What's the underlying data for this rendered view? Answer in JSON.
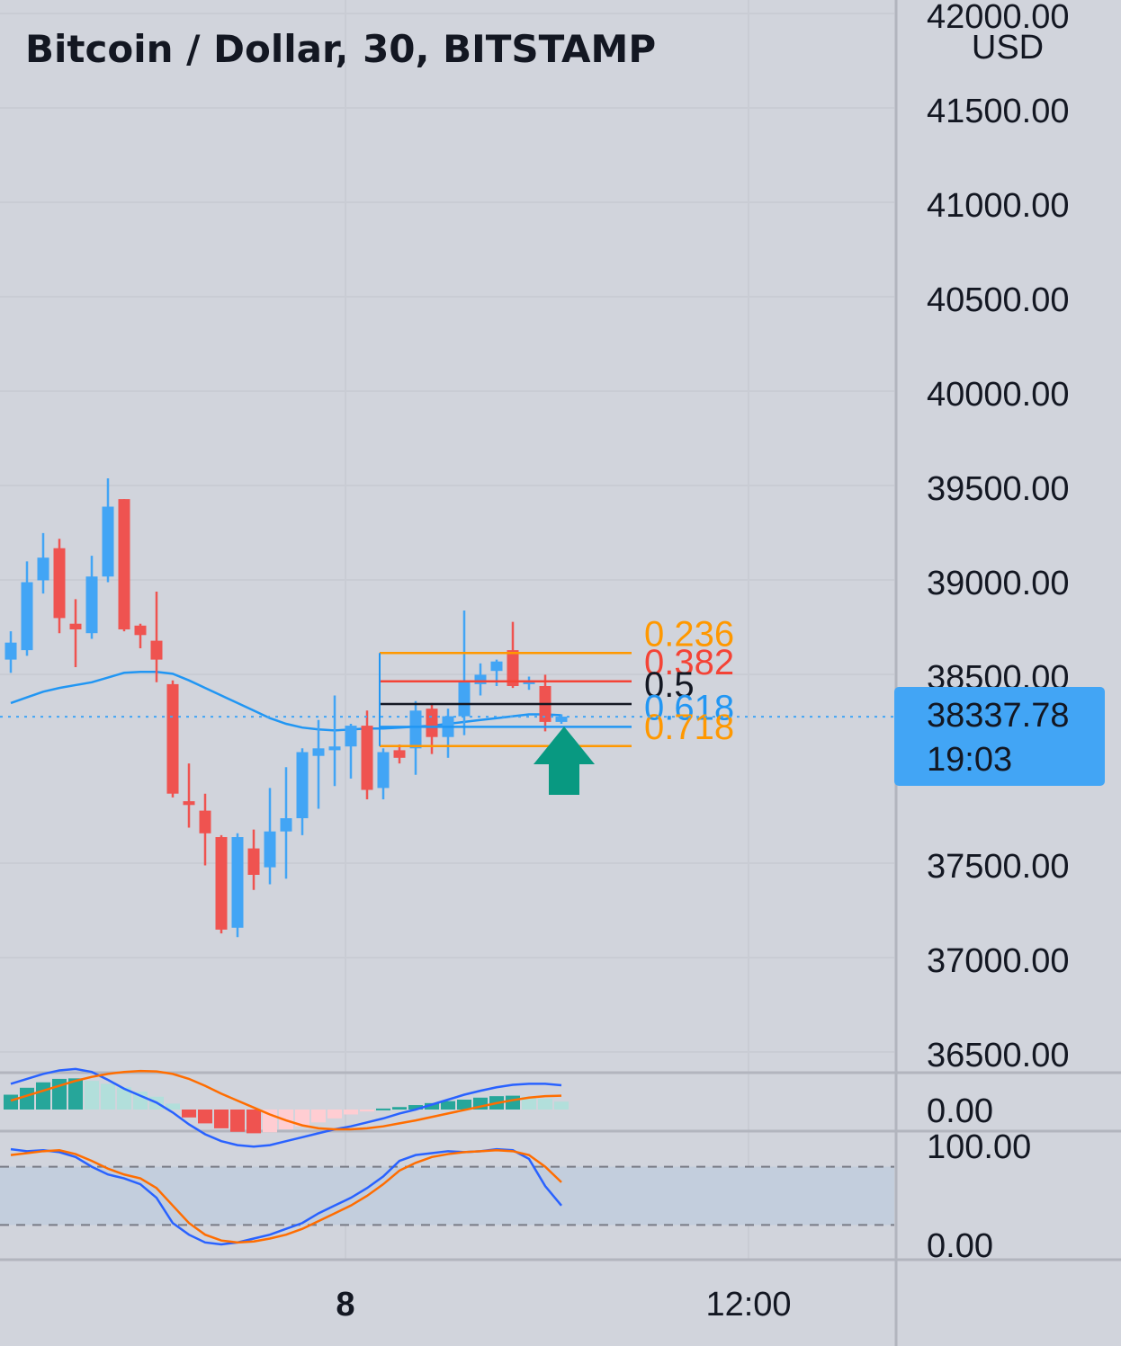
{
  "header": {
    "title": "Bitcoin / Dollar, 30, BITSTAMP",
    "currency": "USD"
  },
  "price_badge": {
    "price": "38337.78",
    "countdown": "19:03",
    "color": "#42a5f5"
  },
  "colors": {
    "background": "#d1d4dc",
    "up": "#42a5f5",
    "down": "#ef5350",
    "ma": "#2196f3",
    "arrow": "#089981",
    "macd_line": "#2962ff",
    "signal_line": "#ff6d00",
    "stoch_k": "#2962ff",
    "stoch_d": "#ff6d00",
    "stoch_band": "#c3cedd"
  },
  "chart_data": [
    {
      "type": "candlestick",
      "title": "Bitcoin / Dollar, 30, BITSTAMP",
      "ylabel": "USD",
      "ylim": [
        36500,
        42000
      ],
      "y_ticks": [
        "42000.00",
        "41500.00",
        "41000.00",
        "40500.00",
        "40000.00",
        "39500.00",
        "39000.00",
        "38500.00",
        "37500.00",
        "37000.00",
        "36500.00"
      ],
      "x_ticks": [
        "8",
        "12:00"
      ],
      "last_price": 38337.78,
      "candles": [
        {
          "o": 38640,
          "h": 38790,
          "l": 38570,
          "c": 38730
        },
        {
          "o": 38690,
          "h": 39160,
          "l": 38660,
          "c": 39050
        },
        {
          "o": 39060,
          "h": 39310,
          "l": 38990,
          "c": 39180
        },
        {
          "o": 39230,
          "h": 39280,
          "l": 38780,
          "c": 38860
        },
        {
          "o": 38830,
          "h": 38960,
          "l": 38600,
          "c": 38800
        },
        {
          "o": 38780,
          "h": 39190,
          "l": 38750,
          "c": 39080
        },
        {
          "o": 39080,
          "h": 39600,
          "l": 39050,
          "c": 39450
        },
        {
          "o": 39490,
          "h": 39490,
          "l": 38790,
          "c": 38800
        },
        {
          "o": 38820,
          "h": 38830,
          "l": 38700,
          "c": 38770
        },
        {
          "o": 38740,
          "h": 39000,
          "l": 38520,
          "c": 38640
        },
        {
          "o": 38510,
          "h": 38530,
          "l": 37910,
          "c": 37930
        },
        {
          "o": 37890,
          "h": 38090,
          "l": 37750,
          "c": 37870
        },
        {
          "o": 37840,
          "h": 37930,
          "l": 37550,
          "c": 37720
        },
        {
          "o": 37700,
          "h": 37710,
          "l": 37190,
          "c": 37210
        },
        {
          "o": 37220,
          "h": 37720,
          "l": 37170,
          "c": 37700
        },
        {
          "o": 37640,
          "h": 37740,
          "l": 37420,
          "c": 37500
        },
        {
          "o": 37540,
          "h": 37960,
          "l": 37450,
          "c": 37730
        },
        {
          "o": 37730,
          "h": 38070,
          "l": 37480,
          "c": 37800
        },
        {
          "o": 37800,
          "h": 38170,
          "l": 37710,
          "c": 38150
        },
        {
          "o": 38130,
          "h": 38320,
          "l": 37850,
          "c": 38170
        },
        {
          "o": 38160,
          "h": 38450,
          "l": 37970,
          "c": 38180
        },
        {
          "o": 38180,
          "h": 38300,
          "l": 38010,
          "c": 38290
        },
        {
          "o": 38290,
          "h": 38370,
          "l": 37900,
          "c": 37950
        },
        {
          "o": 37960,
          "h": 38170,
          "l": 37900,
          "c": 38150
        },
        {
          "o": 38160,
          "h": 38190,
          "l": 38090,
          "c": 38120
        },
        {
          "o": 38170,
          "h": 38420,
          "l": 38030,
          "c": 38370
        },
        {
          "o": 38380,
          "h": 38410,
          "l": 38140,
          "c": 38230
        },
        {
          "o": 38230,
          "h": 38380,
          "l": 38120,
          "c": 38340
        },
        {
          "o": 38340,
          "h": 38900,
          "l": 38240,
          "c": 38520
        },
        {
          "o": 38510,
          "h": 38620,
          "l": 38450,
          "c": 38560
        },
        {
          "o": 38580,
          "h": 38640,
          "l": 38500,
          "c": 38630
        },
        {
          "o": 38690,
          "h": 38840,
          "l": 38490,
          "c": 38500
        },
        {
          "o": 38510,
          "h": 38550,
          "l": 38480,
          "c": 38520
        },
        {
          "o": 38500,
          "h": 38560,
          "l": 38260,
          "c": 38310
        },
        {
          "o": 38310,
          "h": 38350,
          "l": 38300,
          "c": 38337.78
        }
      ],
      "moving_average": [
        38410,
        38440,
        38470,
        38490,
        38505,
        38520,
        38545,
        38570,
        38575,
        38575,
        38565,
        38530,
        38490,
        38450,
        38410,
        38370,
        38330,
        38300,
        38280,
        38270,
        38265,
        38270,
        38275,
        38275,
        38280,
        38285,
        38290,
        38300,
        38310,
        38320,
        38330,
        38340,
        38350,
        38350,
        38345
      ],
      "fibonacci": [
        {
          "level": "0.236",
          "price": 38675,
          "color": "#ff9800"
        },
        {
          "level": "0.382",
          "price": 38525,
          "color": "#f44336"
        },
        {
          "level": "0.5",
          "price": 38405,
          "color": "#131722"
        },
        {
          "level": "0.618",
          "price": 38284,
          "color": "#2196f3"
        },
        {
          "level": "0.718",
          "price": 38182,
          "color": "#ff9800"
        }
      ],
      "annotations": [
        {
          "type": "arrow-up",
          "color": "#089981"
        }
      ]
    },
    {
      "type": "histogram-line",
      "title": "",
      "y_ticks": [
        "0.00"
      ],
      "histogram": [
        30,
        44,
        55,
        62,
        63,
        58,
        52,
        45,
        36,
        26,
        12,
        -16,
        -28,
        -38,
        -45,
        -48,
        -46,
        -40,
        -34,
        -26,
        -18,
        -10,
        -4,
        2,
        5,
        9,
        13,
        17,
        20,
        24,
        27,
        28,
        26,
        22,
        16
      ],
      "macd": [
        52,
        62,
        72,
        79,
        82,
        76,
        60,
        42,
        28,
        14,
        -6,
        -30,
        -50,
        -64,
        -72,
        -75,
        -72,
        -64,
        -56,
        -48,
        -40,
        -34,
        -26,
        -18,
        -8,
        0,
        10,
        20,
        30,
        38,
        45,
        50,
        52,
        52,
        49
      ],
      "signal": [
        18,
        28,
        38,
        48,
        58,
        66,
        72,
        76,
        78,
        77,
        72,
        62,
        48,
        32,
        18,
        4,
        -10,
        -22,
        -32,
        -38,
        -40,
        -40,
        -38,
        -34,
        -28,
        -22,
        -15,
        -8,
        -1,
        6,
        13,
        19,
        24,
        27,
        28
      ]
    },
    {
      "type": "line",
      "title": "",
      "ylim": [
        0,
        100
      ],
      "y_ticks": [
        "100.00",
        "0.00"
      ],
      "bands": [
        20,
        80
      ],
      "k": [
        98,
        96,
        97,
        95,
        90,
        80,
        72,
        68,
        62,
        48,
        22,
        10,
        2,
        0,
        2,
        6,
        10,
        16,
        22,
        32,
        40,
        48,
        58,
        70,
        86,
        92,
        94,
        96,
        95,
        96,
        98,
        97,
        88,
        60,
        40
      ],
      "d": [
        92,
        94,
        96,
        97,
        93,
        86,
        78,
        72,
        68,
        58,
        40,
        22,
        10,
        4,
        2,
        3,
        6,
        10,
        16,
        24,
        32,
        40,
        50,
        62,
        76,
        84,
        90,
        93,
        95,
        96,
        97,
        96,
        92,
        80,
        64
      ]
    }
  ]
}
